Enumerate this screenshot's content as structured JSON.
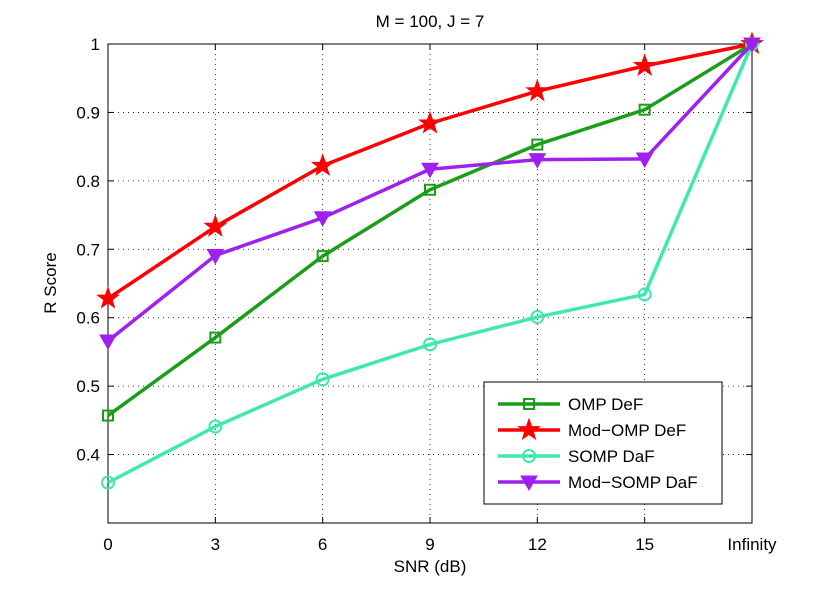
{
  "chart_data": {
    "type": "line",
    "title": "M = 100, J = 7",
    "xlabel": "SNR (dB)",
    "ylabel": "R Score",
    "categories": [
      "0",
      "3",
      "6",
      "9",
      "12",
      "15",
      "Infinity"
    ],
    "ylim": [
      0.3,
      1.0
    ],
    "yticks": [
      0.4,
      0.5,
      0.6,
      0.7,
      0.8,
      0.9,
      1.0
    ],
    "ytick_labels": [
      "0.4",
      "0.5",
      "0.6",
      "0.7",
      "0.8",
      "0.9",
      "1"
    ],
    "grid": true,
    "legend_position": "bottom-right",
    "series": [
      {
        "name": "OMP DeF",
        "color": "#1a9e1a",
        "marker": "square",
        "values": [
          0.457,
          0.571,
          0.69,
          0.787,
          0.853,
          0.904,
          1.0
        ]
      },
      {
        "name": "Mod−OMP DeF",
        "color": "#ff0000",
        "marker": "star",
        "values": [
          0.628,
          0.733,
          0.822,
          0.884,
          0.931,
          0.968,
          1.0
        ]
      },
      {
        "name": "SOMP DaF",
        "color": "#40e8b0",
        "marker": "circle",
        "values": [
          0.359,
          0.441,
          0.51,
          0.561,
          0.601,
          0.634,
          1.0
        ]
      },
      {
        "name": "Mod−SOMP DaF",
        "color": "#a020f0",
        "marker": "triangle-down",
        "values": [
          0.566,
          0.691,
          0.746,
          0.817,
          0.831,
          0.832,
          1.0
        ]
      }
    ]
  }
}
